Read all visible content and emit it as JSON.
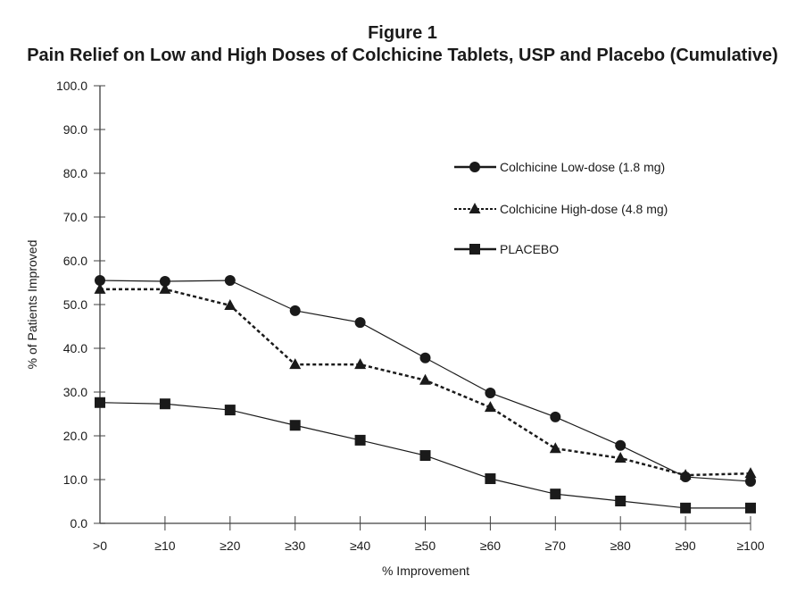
{
  "chart_data": {
    "type": "line",
    "title": "Figure 1",
    "subtitle": "Pain Relief on Low and High Doses of Colchicine Tablets, USP and Placebo (Cumulative)",
    "xlabel": "% Improvement",
    "ylabel": "% of Patients Improved",
    "categories": [
      ">0",
      "≥10",
      "≥20",
      "≥30",
      "≥40",
      "≥50",
      "≥60",
      "≥70",
      "≥80",
      "≥90",
      "≥100"
    ],
    "ylim": [
      0,
      100
    ],
    "yticks": [
      "0.0",
      "10.0",
      "20.0",
      "30.0",
      "40.0",
      "50.0",
      "60.0",
      "70.0",
      "80.0",
      "90.0",
      "100.0"
    ],
    "ytick_values": [
      0,
      10,
      20,
      30,
      40,
      50,
      60,
      70,
      80,
      90,
      100
    ],
    "grid": false,
    "legend_position": "upper-right",
    "series": [
      {
        "name": "Colchicine Low-dose (1.8 mg)",
        "marker": "circle",
        "line_style": "solid",
        "color": "#1a1a1a",
        "values": [
          55.5,
          55.3,
          55.5,
          48.6,
          45.9,
          37.8,
          29.8,
          24.3,
          17.8,
          10.6,
          9.6
        ]
      },
      {
        "name": "Colchicine High-dose (4.8 mg)",
        "marker": "triangle",
        "line_style": "dashed",
        "color": "#1a1a1a",
        "values": [
          53.5,
          53.5,
          49.8,
          36.3,
          36.3,
          32.7,
          26.5,
          17.1,
          14.9,
          11.0,
          11.4
        ]
      },
      {
        "name": "PLACEBO",
        "marker": "square",
        "line_style": "solid",
        "color": "#1a1a1a",
        "values": [
          27.6,
          27.3,
          25.9,
          22.4,
          19.0,
          15.5,
          10.2,
          6.7,
          5.1,
          3.5,
          3.5
        ]
      }
    ]
  }
}
